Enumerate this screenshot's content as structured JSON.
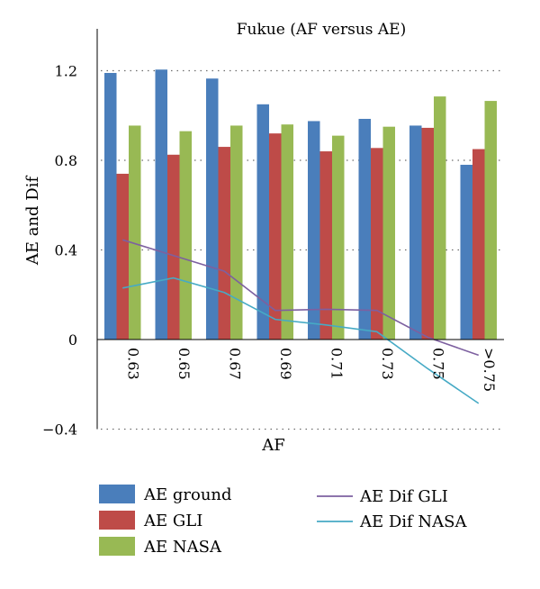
{
  "chart_data": {
    "type": "bar",
    "title": "Fukue (AF versus AE)",
    "xlabel": "AF",
    "ylabel": "AE and Dif",
    "categories": [
      "0.63",
      "0.65",
      "0.67",
      "0.69",
      "0.71",
      "0.73",
      "0.75",
      ">0.75"
    ],
    "ylim": [
      -0.4,
      1.4
    ],
    "yticks": [
      -0.4,
      0,
      0.4,
      0.8,
      1.2
    ],
    "ytick_labels": [
      "−0.4",
      "0",
      "0.4",
      "0.8",
      "1.2"
    ],
    "grid": "horizontal-dotted",
    "series": [
      {
        "name": "AE ground",
        "kind": "bar",
        "color": "#4a7ebb",
        "values": [
          1.19,
          1.205,
          1.165,
          1.05,
          0.975,
          0.985,
          0.955,
          0.78
        ]
      },
      {
        "name": "AE GLI",
        "kind": "bar",
        "color": "#be4b48",
        "values": [
          0.74,
          0.825,
          0.86,
          0.92,
          0.84,
          0.855,
          0.945,
          0.85
        ]
      },
      {
        "name": "AE NASA",
        "kind": "bar",
        "color": "#98b954",
        "values": [
          0.955,
          0.93,
          0.955,
          0.96,
          0.91,
          0.95,
          1.085,
          1.065
        ]
      },
      {
        "name": "AE Dif GLI",
        "kind": "line",
        "color": "#7d60a0",
        "values": [
          0.445,
          0.375,
          0.305,
          0.13,
          0.135,
          0.13,
          0.01,
          -0.07
        ]
      },
      {
        "name": "AE Dif NASA",
        "kind": "line",
        "color": "#46aac5",
        "values": [
          0.23,
          0.275,
          0.21,
          0.09,
          0.065,
          0.035,
          -0.13,
          -0.285
        ]
      }
    ],
    "legend": {
      "placement": "bottom",
      "left_column": [
        "AE ground",
        "AE GLI",
        "AE NASA"
      ],
      "right_column": [
        "AE Dif GLI",
        "AE Dif NASA"
      ]
    }
  }
}
